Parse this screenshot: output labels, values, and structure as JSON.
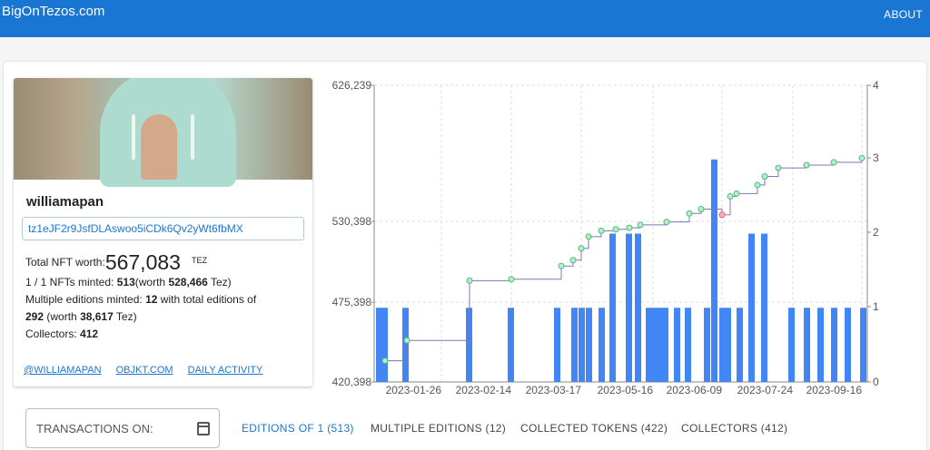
{
  "header": {
    "brand": "BigOnTezos.com",
    "about": "ABOUT"
  },
  "profile": {
    "name": "williamapan",
    "address": "tz1eJF2r9JsfDLAswoo5iCDk6Qv2yWt6fbMX",
    "worth_label": "Total NFT worth:",
    "worth_value": "567,083",
    "worth_unit": "TEZ",
    "minted_label": "1 / 1 NFTs minted:",
    "minted_count": "513",
    "minted_worth_prefix": "(worth",
    "minted_worth": "528,466",
    "minted_worth_suffix": "Tez)",
    "multi_label": "Multiple editions minted:",
    "multi_count": "12",
    "multi_mid": "with total editions of",
    "multi_editions": "292",
    "multi_worth_prefix": "(worth",
    "multi_worth": "38,617",
    "multi_worth_suffix": "Tez)",
    "collectors_label": "Collectors:",
    "collectors_value": "412",
    "links": [
      "@WILLIAMAPAN",
      "OBJKT.COM",
      "DAILY ACTIVITY"
    ]
  },
  "chart_data": {
    "type": "bar",
    "y_left_ticks": [
      "626,239",
      "530,398",
      "475,398",
      "420,398"
    ],
    "y_left_lim": [
      420398,
      626239
    ],
    "y_right_ticks": [
      "4",
      "3",
      "2",
      "1",
      "0"
    ],
    "y_right_lim": [
      0,
      4
    ],
    "x_tick_labels": [
      "2023-01-26",
      "2023-02-14",
      "2023-03-17",
      "2023-05-16",
      "2023-06-09",
      "2023-07-24",
      "2023-09-16"
    ],
    "grid": true,
    "colors": {
      "bar": "#4285f4",
      "line": "#7b78b8",
      "marker": "#48c078",
      "marker_alt": "#ea5a6a"
    },
    "bars": [
      1,
      1,
      1,
      1,
      1,
      1,
      1,
      1,
      1,
      1,
      2,
      2,
      2,
      1,
      1,
      1,
      1,
      1,
      1,
      1,
      3,
      1,
      1,
      1,
      2,
      2,
      1,
      1,
      1,
      1,
      1,
      1
    ],
    "line_values": [
      435000,
      449000,
      490000,
      491000,
      500000,
      504000,
      512000,
      520000,
      524000,
      525000,
      526000,
      528000,
      530000,
      536000,
      539000,
      535000,
      548000,
      550000,
      556000,
      562000,
      568000,
      570000,
      572000,
      575000
    ],
    "alt_marker_index": 15
  },
  "controls": {
    "transactions_label": "TRANSACTIONS ON:"
  },
  "tabs": [
    {
      "label": "EDITIONS OF 1 (513)",
      "active": true
    },
    {
      "label": "MULTIPLE EDITIONS (12)",
      "active": false
    },
    {
      "label": "COLLECTED TOKENS (422)",
      "active": false
    },
    {
      "label": "COLLECTORS (412)",
      "active": false
    }
  ]
}
